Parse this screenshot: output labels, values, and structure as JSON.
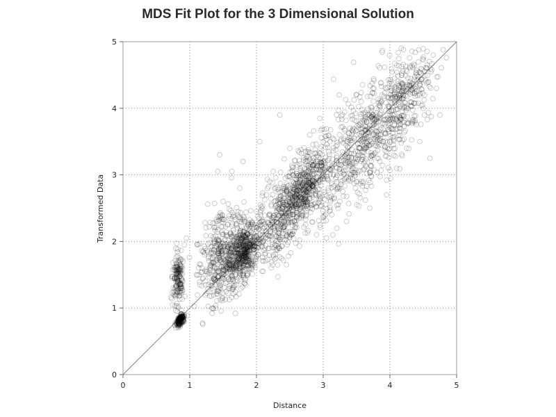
{
  "chart_data": {
    "type": "scatter",
    "title": "MDS Fit Plot for the 3 Dimensional Solution",
    "xlabel": "Distance",
    "ylabel": "Transformed Data",
    "xlim": [
      0,
      5
    ],
    "ylim": [
      0,
      5
    ],
    "xticks": [
      "0",
      "1",
      "2",
      "3",
      "4",
      "5"
    ],
    "yticks": [
      "0",
      "1",
      "2",
      "3",
      "4",
      "5"
    ],
    "grid": true,
    "reference_line": "y = x",
    "marker": "open-circle",
    "point_color": "#000000",
    "approx_point_count": 3000,
    "points": [
      [
        0.78,
        1.45
      ],
      [
        0.82,
        1.38
      ],
      [
        0.85,
        1.52
      ],
      [
        0.8,
        1.62
      ],
      [
        0.88,
        1.3
      ],
      [
        0.76,
        1.2
      ],
      [
        0.84,
        1.18
      ],
      [
        0.9,
        1.7
      ],
      [
        0.92,
        1.95
      ],
      [
        0.95,
        2.05
      ],
      [
        0.78,
        0.75
      ],
      [
        0.82,
        0.8
      ],
      [
        0.86,
        0.84
      ],
      [
        0.88,
        0.86
      ],
      [
        0.9,
        0.88
      ],
      [
        0.92,
        0.9
      ],
      [
        0.8,
        0.78
      ],
      [
        0.84,
        0.82
      ],
      [
        0.75,
        1.68
      ],
      [
        0.86,
        1.56
      ],
      [
        1.1,
        1.5
      ],
      [
        1.15,
        1.35
      ],
      [
        1.2,
        1.45
      ],
      [
        1.25,
        1.22
      ],
      [
        1.3,
        1.18
      ],
      [
        1.18,
        1.6
      ],
      [
        1.28,
        1.75
      ],
      [
        1.35,
        1.98
      ],
      [
        1.4,
        2.3
      ],
      [
        1.42,
        3.05
      ],
      [
        1.45,
        3.3
      ],
      [
        1.5,
        2.6
      ],
      [
        1.55,
        2.1
      ],
      [
        1.6,
        1.8
      ],
      [
        1.65,
        1.7
      ],
      [
        1.7,
        1.95
      ],
      [
        1.72,
        2.4
      ],
      [
        1.75,
        2.8
      ],
      [
        1.8,
        3.2
      ],
      [
        1.85,
        2.2
      ],
      [
        1.88,
        1.75
      ],
      [
        1.9,
        1.6
      ],
      [
        1.95,
        2.0
      ],
      [
        2.0,
        2.45
      ],
      [
        2.05,
        3.5
      ],
      [
        2.1,
        1.55
      ],
      [
        2.15,
        2.7
      ],
      [
        2.2,
        2.9
      ],
      [
        2.25,
        3.05
      ],
      [
        2.3,
        2.55
      ],
      [
        2.35,
        3.9
      ],
      [
        2.4,
        2.2
      ],
      [
        2.45,
        1.65
      ],
      [
        2.5,
        3.4
      ],
      [
        2.55,
        2.8
      ],
      [
        2.6,
        2.65
      ],
      [
        2.65,
        3.0
      ],
      [
        2.7,
        2.8
      ],
      [
        2.75,
        2.4
      ],
      [
        2.8,
        3.6
      ],
      [
        2.85,
        2.95
      ],
      [
        2.9,
        2.1
      ],
      [
        2.95,
        3.85
      ],
      [
        3.0,
        3.2
      ],
      [
        3.05,
        2.05
      ],
      [
        3.1,
        3.5
      ],
      [
        3.15,
        3.0
      ],
      [
        3.2,
        3.9
      ],
      [
        3.25,
        2.6
      ],
      [
        3.3,
        3.3
      ],
      [
        3.35,
        2.3
      ],
      [
        3.4,
        3.7
      ],
      [
        3.45,
        3.1
      ],
      [
        3.5,
        4.2
      ],
      [
        3.55,
        3.4
      ],
      [
        3.6,
        2.9
      ],
      [
        3.65,
        3.8
      ],
      [
        3.7,
        2.5
      ],
      [
        3.75,
        3.6
      ],
      [
        3.8,
        4.0
      ],
      [
        3.85,
        3.2
      ],
      [
        3.9,
        3.5
      ],
      [
        3.95,
        2.7
      ],
      [
        4.0,
        3.9
      ],
      [
        4.05,
        4.2
      ],
      [
        4.1,
        3.1
      ],
      [
        4.15,
        3.7
      ],
      [
        4.2,
        4.3
      ],
      [
        4.25,
        3.4
      ],
      [
        4.3,
        4.4
      ],
      [
        4.35,
        3.8
      ],
      [
        4.4,
        4.5
      ],
      [
        4.45,
        3.5
      ],
      [
        4.5,
        4.0
      ],
      [
        4.55,
        4.6
      ],
      [
        4.6,
        3.25
      ],
      [
        4.65,
        4.8
      ],
      [
        4.7,
        4.3
      ],
      [
        4.75,
        3.9
      ],
      [
        4.8,
        4.88
      ]
    ]
  }
}
